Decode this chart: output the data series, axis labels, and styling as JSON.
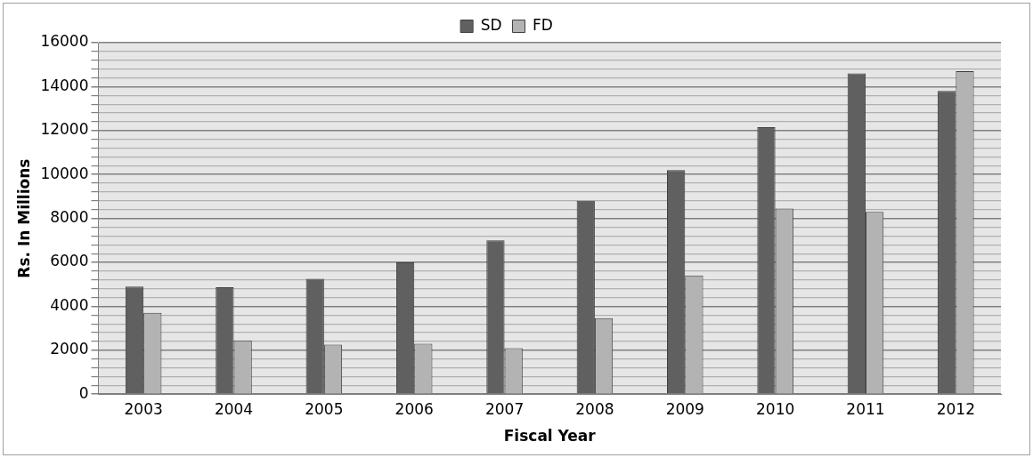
{
  "chart_data": {
    "type": "bar",
    "xlabel": "Fiscal Year",
    "ylabel": "Rs. In Millions",
    "categories": [
      "2003",
      "2004",
      "2005",
      "2006",
      "2007",
      "2008",
      "2009",
      "2010",
      "2011",
      "2012"
    ],
    "series": [
      {
        "name": "SD",
        "color": "#606060",
        "values": [
          4900,
          4870,
          5250,
          6000,
          7000,
          8800,
          10200,
          12150,
          14600,
          13800
        ]
      },
      {
        "name": "FD",
        "color": "#b3b3b3",
        "values": [
          3700,
          2450,
          2260,
          2300,
          2090,
          3460,
          5400,
          8450,
          8300,
          14700
        ]
      }
    ],
    "ylim": [
      0,
      16000
    ],
    "yticks": [
      0,
      {
        "value": 400,
        "label": null
      },
      {
        "value": 800,
        "label": null
      },
      {
        "value": 1200,
        "label": null
      },
      {
        "value": 1600,
        "label": null
      },
      2000,
      {
        "value": 2400,
        "label": null
      },
      {
        "value": 2800,
        "label": null
      },
      {
        "value": 3200,
        "label": null
      },
      {
        "value": 3600,
        "label": null
      },
      4000,
      {
        "value": 4400,
        "label": null
      },
      {
        "value": 4800,
        "label": null
      },
      {
        "value": 5200,
        "label": null
      },
      {
        "value": 5600,
        "label": null
      },
      6000,
      {
        "value": 6400,
        "label": null
      },
      {
        "value": 6800,
        "label": null
      },
      {
        "value": 7200,
        "label": null
      },
      {
        "value": 7600,
        "label": null
      },
      8000,
      {
        "value": 8400,
        "label": null
      },
      {
        "value": 8800,
        "label": null
      },
      {
        "value": 9200,
        "label": null
      },
      {
        "value": 9600,
        "label": null
      },
      10000,
      {
        "value": 10400,
        "label": null
      },
      {
        "value": 10800,
        "label": null
      },
      {
        "value": 11200,
        "label": null
      },
      {
        "value": 11600,
        "label": null
      },
      12000,
      {
        "value": 12400,
        "label": null
      },
      {
        "value": 12800,
        "label": null
      },
      {
        "value": 13200,
        "label": null
      },
      {
        "value": 13600,
        "label": null
      },
      14000,
      {
        "value": 14400,
        "label": null
      },
      {
        "value": 14800,
        "label": null
      },
      {
        "value": 15200,
        "label": null
      },
      {
        "value": 15600,
        "label": null
      },
      16000
    ],
    "grid": "y",
    "legend": "top"
  }
}
